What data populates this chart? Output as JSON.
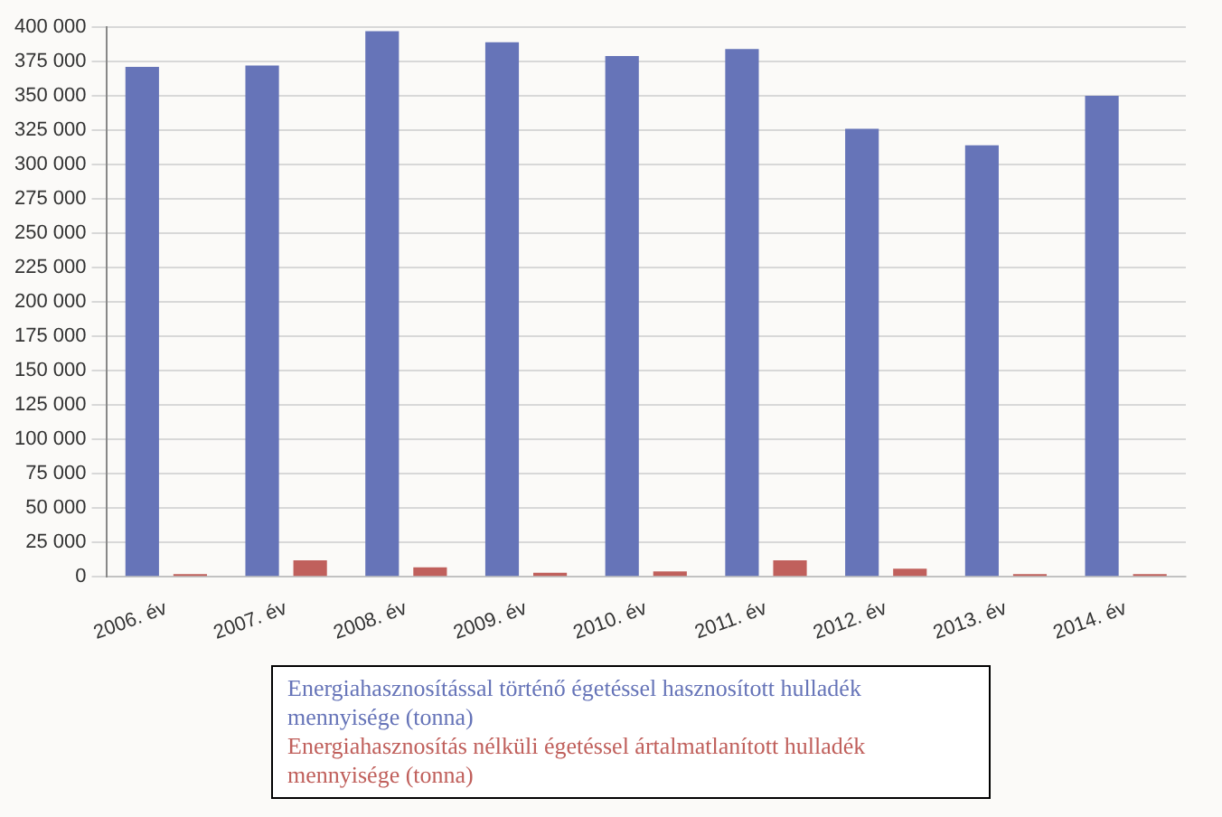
{
  "chart_data": {
    "type": "bar",
    "categories": [
      "2006. év",
      "2007. év",
      "2008. év",
      "2009. év",
      "2010. év",
      "2011. év",
      "2012. év",
      "2013. év",
      "2014. év"
    ],
    "series": [
      {
        "name": "Energiahasznosítással történő égetéssel hasznosított hulladék mennyisége (tonna)",
        "color": "#6674b8",
        "values": [
          371000,
          372000,
          397000,
          389000,
          379000,
          384000,
          326000,
          314000,
          350000
        ]
      },
      {
        "name": "Energiahasznosítás nélküli égetéssel ártalmatlanított hulladék mennyisége (tonna)",
        "color": "#c0605c",
        "values": [
          2000,
          12000,
          7000,
          3000,
          4000,
          12000,
          6000,
          2000,
          2000
        ]
      }
    ],
    "ylim": [
      0,
      400000
    ],
    "yticks": [
      0,
      25000,
      50000,
      75000,
      100000,
      125000,
      150000,
      175000,
      200000,
      225000,
      250000,
      275000,
      300000,
      325000,
      350000,
      375000,
      400000
    ],
    "grid": "y",
    "legend": "bottom"
  }
}
